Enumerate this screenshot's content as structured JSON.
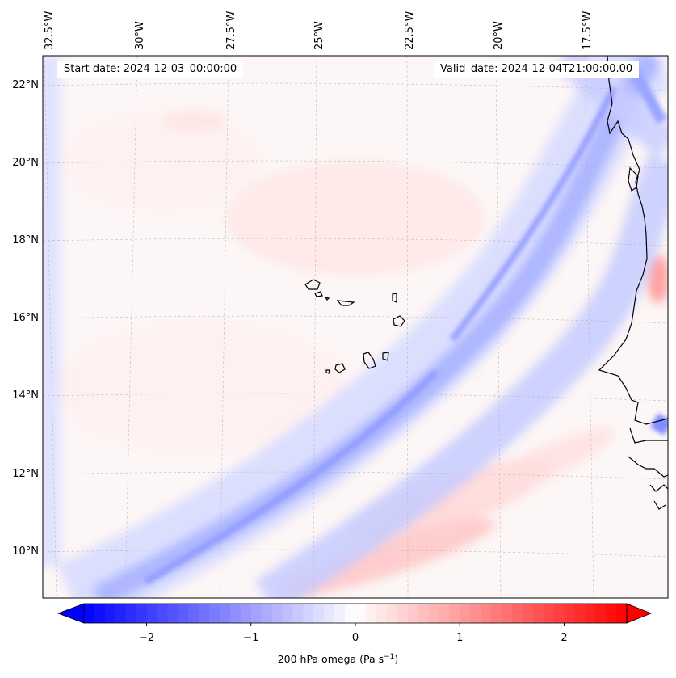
{
  "map": {
    "start_date": "Start date: 2024-12-03_00:00:00",
    "valid_date": "Valid_date: 2024-12-04T21:00:00.00",
    "lon_labels": [
      "32.5°W",
      "30°W",
      "27.5°W",
      "25°W",
      "22.5°W",
      "20°W",
      "17.5°W"
    ],
    "lat_labels": [
      "22°N",
      "20°N",
      "18°N",
      "16°N",
      "14°N",
      "12°N",
      "10°N"
    ],
    "field": "200 hPa omega",
    "colors": {
      "negative": "#0000ff",
      "neutral": "#ffffff",
      "positive": "#ff0000",
      "coast": "#000000",
      "grid": "#b0b0b0"
    }
  },
  "colorbar": {
    "label_prefix": "200 hPa omega (Pa s",
    "label_exp": "−1",
    "label_suffix": ")",
    "ticks": [
      "−2",
      "−1",
      "0",
      "1",
      "2"
    ],
    "tick_values": [
      -2,
      -1,
      0,
      1,
      2
    ],
    "range": [
      -2.6,
      2.6
    ]
  }
}
